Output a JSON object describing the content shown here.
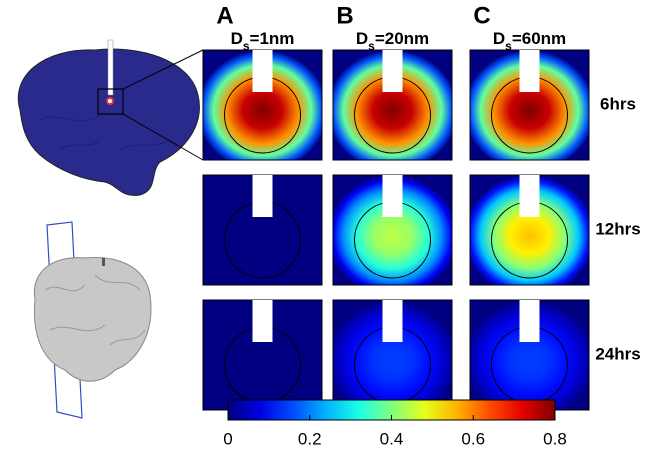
{
  "columns": [
    {
      "label": "A",
      "title": {
        "main": "D",
        "sub": "s",
        "rest": "=1nm"
      }
    },
    {
      "label": "B",
      "title": {
        "main": "D",
        "sub": "s",
        "rest": "=20nm"
      }
    },
    {
      "label": "C",
      "title": {
        "main": "D",
        "sub": "s",
        "rest": "=60nm"
      }
    }
  ],
  "rows": [
    "6hrs",
    "12hrs",
    "24hrs"
  ],
  "panels": [
    [
      0.8,
      0.8,
      0.8
    ],
    [
      0,
      0.45,
      0.55
    ],
    [
      0,
      0.15,
      0.15
    ]
  ],
  "colorbar": {
    "lim": [
      0,
      0.8
    ],
    "ticks": [
      0,
      0.2,
      0.4,
      0.6,
      0.8
    ]
  }
}
